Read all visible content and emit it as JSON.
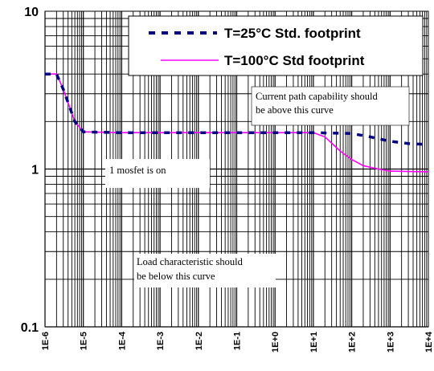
{
  "chart_data": {
    "type": "line",
    "x_scale": "log",
    "y_scale": "log",
    "xlim": [
      1e-06,
      10000.0
    ],
    "ylim": [
      0.1,
      10
    ],
    "grid": true,
    "x_tick_labels": [
      "1E-6",
      "1E-5",
      "1E-4",
      "1E-3",
      "1E-2",
      "1E-1",
      "1E+0",
      "1E+1",
      "1E+2",
      "1E+3",
      "1E+4"
    ],
    "y_tick_labels": [
      "0.1",
      "1",
      "10"
    ],
    "legend_position": "top-right",
    "series": [
      {
        "name": "T=25°C  Std. footprint",
        "color": "#000080",
        "style": "dashed",
        "points": [
          [
            1e-06,
            4.0
          ],
          [
            2e-06,
            4.0
          ],
          [
            3e-06,
            3.2
          ],
          [
            6e-06,
            2.0
          ],
          [
            1e-05,
            1.72
          ],
          [
            0.0001,
            1.7
          ],
          [
            0.001,
            1.7
          ],
          [
            0.01,
            1.7
          ],
          [
            0.1,
            1.7
          ],
          [
            1,
            1.7
          ],
          [
            10,
            1.7
          ],
          [
            100,
            1.68
          ],
          [
            300,
            1.6
          ],
          [
            1000,
            1.5
          ],
          [
            3000,
            1.45
          ],
          [
            10000,
            1.43
          ]
        ]
      },
      {
        "name": "T=100°C Std footprint",
        "color": "#ff00ff",
        "style": "solid",
        "points": [
          [
            1e-06,
            4.0
          ],
          [
            2e-06,
            4.0
          ],
          [
            3e-06,
            3.2
          ],
          [
            6e-06,
            2.0
          ],
          [
            1e-05,
            1.72
          ],
          [
            0.0001,
            1.7
          ],
          [
            0.001,
            1.7
          ],
          [
            0.01,
            1.7
          ],
          [
            0.1,
            1.7
          ],
          [
            1,
            1.7
          ],
          [
            10,
            1.7
          ],
          [
            20,
            1.6
          ],
          [
            50,
            1.3
          ],
          [
            100,
            1.15
          ],
          [
            200,
            1.05
          ],
          [
            500,
            1.0
          ],
          [
            1000,
            0.97
          ],
          [
            10000,
            0.96
          ]
        ]
      }
    ],
    "annotations": [
      {
        "lines": [
          "Current path capability should",
          "be above this curve"
        ]
      },
      {
        "lines": [
          "1 mosfet is on"
        ]
      },
      {
        "lines": [
          "Load characteristic should",
          "be below this curve"
        ]
      }
    ]
  }
}
